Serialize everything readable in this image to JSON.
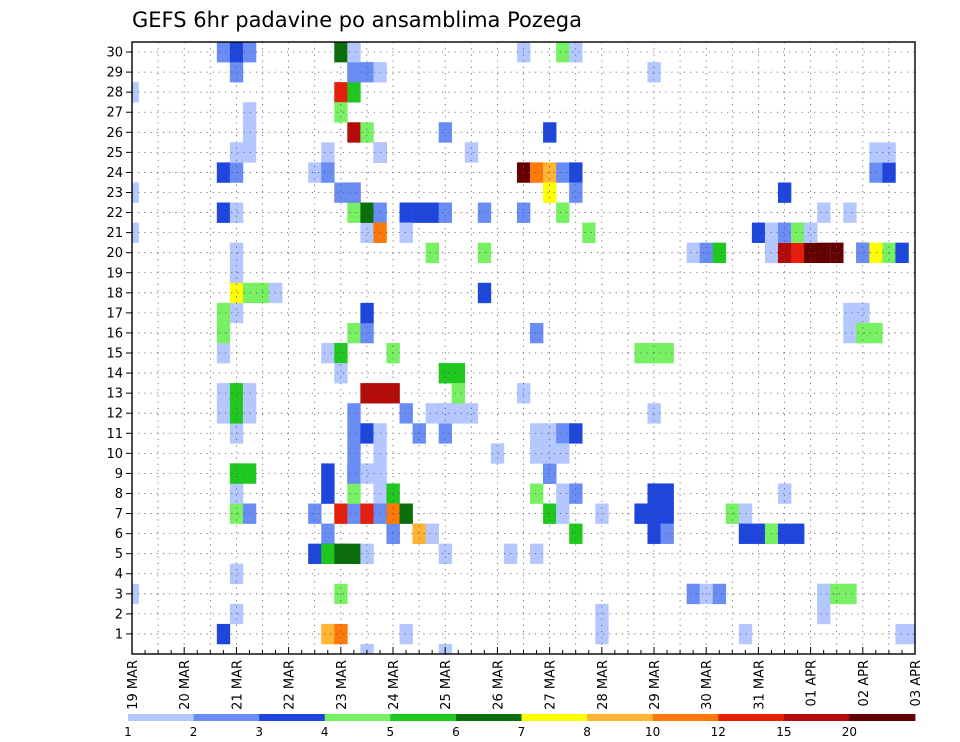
{
  "chart_data": {
    "type": "heatmap",
    "title": "GEFS 6hr padavine po ansamblima Pozega",
    "y_ticks": [
      "1",
      "2",
      "3",
      "4",
      "5",
      "6",
      "7",
      "8",
      "9",
      "10",
      "11",
      "12",
      "13",
      "14",
      "15",
      "16",
      "17",
      "18",
      "19",
      "20",
      "21",
      "22",
      "23",
      "24",
      "25",
      "26",
      "27",
      "28",
      "29",
      "30"
    ],
    "x_ticks": [
      "19 MAR",
      "20 MAR",
      "21 MAR",
      "22 MAR",
      "23 MAR",
      "24 MAR",
      "25 MAR",
      "26 MAR",
      "27 MAR",
      "28 MAR",
      "29 MAR",
      "30 MAR",
      "31 MAR",
      "01 APR",
      "02 APR",
      "03 APR"
    ],
    "x_start": "19 MAR 00Z",
    "x_step": "6 hr",
    "n_steps": 61,
    "colorbar": {
      "labels": [
        "1",
        "2",
        "3",
        "4",
        "5",
        "6",
        "7",
        "8",
        "10",
        "12",
        "15",
        "20"
      ],
      "colors": [
        "#b4c8ff",
        "#6a8cf5",
        "#1e46dc",
        "#78f064",
        "#1ec81e",
        "#0a6e0a",
        "#ffff00",
        "#ffb432",
        "#ff780a",
        "#e61e0a",
        "#b40a0a",
        "#640000"
      ]
    },
    "cells": [
      [
        0,
        1,
        3
      ],
      [
        0,
        1,
        21
      ],
      [
        0,
        1,
        23
      ],
      [
        0,
        1,
        28
      ],
      [
        7,
        3,
        1
      ],
      [
        7,
        1,
        12
      ],
      [
        7,
        1,
        13
      ],
      [
        7,
        1,
        15
      ],
      [
        7,
        4,
        16
      ],
      [
        7,
        4,
        17
      ],
      [
        7,
        3,
        22
      ],
      [
        7,
        3,
        24
      ],
      [
        7,
        2,
        30
      ],
      [
        8,
        2,
        29
      ],
      [
        8,
        1,
        2
      ],
      [
        8,
        1,
        4
      ],
      [
        8,
        4,
        7
      ],
      [
        8,
        1,
        8
      ],
      [
        8,
        4,
        9
      ],
      [
        8,
        5,
        9
      ],
      [
        8,
        1,
        11
      ],
      [
        8,
        5,
        12
      ],
      [
        8,
        5,
        13
      ],
      [
        8,
        1,
        17
      ],
      [
        8,
        7,
        18
      ],
      [
        8,
        1,
        19
      ],
      [
        8,
        1,
        20
      ],
      [
        8,
        1,
        22
      ],
      [
        8,
        2,
        24
      ],
      [
        8,
        1,
        25
      ],
      [
        8,
        3,
        30
      ],
      [
        9,
        2,
        7
      ],
      [
        9,
        5,
        9
      ],
      [
        9,
        1,
        12
      ],
      [
        9,
        1,
        13
      ],
      [
        9,
        4,
        18
      ],
      [
        9,
        1,
        25
      ],
      [
        9,
        1,
        26
      ],
      [
        9,
        1,
        27
      ],
      [
        9,
        2,
        30
      ],
      [
        10,
        4,
        18
      ],
      [
        11,
        1,
        18
      ],
      [
        14,
        3,
        5
      ],
      [
        14,
        2,
        7
      ],
      [
        14,
        1,
        24
      ],
      [
        15,
        2,
        6
      ],
      [
        15,
        3,
        5
      ],
      [
        15,
        8,
        1
      ],
      [
        15,
        5,
        5
      ],
      [
        15,
        3,
        8
      ],
      [
        15,
        3,
        9
      ],
      [
        15,
        1,
        15
      ],
      [
        15,
        1,
        25
      ],
      [
        15,
        2,
        24
      ],
      [
        16,
        9,
        1
      ],
      [
        16,
        4,
        3
      ],
      [
        16,
        5,
        5
      ],
      [
        16,
        6,
        5
      ],
      [
        16,
        10,
        7
      ],
      [
        16,
        5,
        15
      ],
      [
        16,
        1,
        14
      ],
      [
        16,
        2,
        23
      ],
      [
        16,
        6,
        30
      ],
      [
        16,
        10,
        28
      ],
      [
        16,
        4,
        27
      ],
      [
        17,
        6,
        5
      ],
      [
        17,
        2,
        7
      ],
      [
        17,
        3,
        9
      ],
      [
        17,
        4,
        8
      ],
      [
        17,
        2,
        9
      ],
      [
        17,
        2,
        10
      ],
      [
        17,
        2,
        11
      ],
      [
        17,
        2,
        12
      ],
      [
        17,
        4,
        16
      ],
      [
        17,
        4,
        22
      ],
      [
        17,
        10,
        23
      ],
      [
        17,
        11,
        26
      ],
      [
        17,
        5,
        28
      ],
      [
        17,
        5,
        29
      ],
      [
        17,
        4,
        23
      ],
      [
        17,
        2,
        23
      ],
      [
        17,
        2,
        29
      ],
      [
        17,
        1,
        30
      ],
      [
        18,
        2,
        7
      ],
      [
        18,
        10,
        7
      ],
      [
        18,
        1,
        9
      ],
      [
        18,
        1,
        5
      ],
      [
        18,
        3,
        11
      ],
      [
        18,
        2,
        16
      ],
      [
        18,
        1,
        21
      ],
      [
        18,
        6,
        22
      ],
      [
        18,
        11,
        13
      ],
      [
        18,
        3,
        17
      ],
      [
        18,
        4,
        26
      ],
      [
        18,
        2,
        29
      ],
      [
        18,
        1,
        0
      ],
      [
        19,
        1,
        8
      ],
      [
        19,
        11,
        13
      ],
      [
        19,
        1,
        9
      ],
      [
        19,
        2,
        7
      ],
      [
        19,
        1,
        11
      ],
      [
        19,
        1,
        10
      ],
      [
        19,
        10,
        25
      ],
      [
        19,
        1,
        25
      ],
      [
        19,
        2,
        22
      ],
      [
        19,
        9,
        21
      ],
      [
        19,
        1,
        29
      ],
      [
        20,
        12,
        7
      ],
      [
        20,
        11,
        13
      ],
      [
        20,
        9,
        6
      ],
      [
        20,
        5,
        8
      ],
      [
        20,
        2,
        6
      ],
      [
        20,
        9,
        7
      ],
      [
        20,
        4,
        15
      ],
      [
        21,
        6,
        7
      ],
      [
        21,
        1,
        1
      ],
      [
        21,
        3,
        22
      ],
      [
        21,
        2,
        12
      ],
      [
        21,
        1,
        21
      ],
      [
        22,
        2,
        6
      ],
      [
        22,
        8,
        6
      ],
      [
        22,
        3,
        22
      ],
      [
        22,
        2,
        11
      ],
      [
        23,
        1,
        6
      ],
      [
        23,
        1,
        12
      ],
      [
        23,
        4,
        20
      ],
      [
        23,
        3,
        22
      ],
      [
        24,
        1,
        5
      ],
      [
        24,
        2,
        11
      ],
      [
        24,
        2,
        12
      ],
      [
        24,
        5,
        14
      ],
      [
        24,
        1,
        12
      ],
      [
        24,
        1,
        0
      ],
      [
        24,
        2,
        26
      ],
      [
        24,
        2,
        22
      ],
      [
        25,
        1,
        12
      ],
      [
        25,
        5,
        14
      ],
      [
        25,
        4,
        13
      ],
      [
        26,
        1,
        12
      ],
      [
        26,
        1,
        25
      ],
      [
        27,
        2,
        22
      ],
      [
        27,
        4,
        20
      ],
      [
        27,
        3,
        18
      ],
      [
        28,
        1,
        10
      ],
      [
        29,
        1,
        5
      ],
      [
        30,
        1,
        30
      ],
      [
        30,
        1,
        13
      ],
      [
        30,
        2,
        22
      ],
      [
        30,
        12,
        24
      ],
      [
        31,
        2,
        16
      ],
      [
        31,
        1,
        5
      ],
      [
        31,
        1,
        10
      ],
      [
        31,
        1,
        11
      ],
      [
        31,
        4,
        8
      ],
      [
        31,
        9,
        24
      ],
      [
        32,
        3,
        9
      ],
      [
        32,
        2,
        9
      ],
      [
        32,
        5,
        7
      ],
      [
        32,
        4,
        23
      ],
      [
        32,
        1,
        23
      ],
      [
        32,
        8,
        24
      ],
      [
        32,
        7,
        23
      ],
      [
        32,
        1,
        11
      ],
      [
        32,
        1,
        10
      ],
      [
        32,
        3,
        26
      ],
      [
        33,
        1,
        7
      ],
      [
        33,
        1,
        8
      ],
      [
        33,
        2,
        11
      ],
      [
        33,
        2,
        24
      ],
      [
        33,
        4,
        22
      ],
      [
        33,
        1,
        10
      ],
      [
        33,
        4,
        30
      ],
      [
        34,
        3,
        11
      ],
      [
        34,
        5,
        6
      ],
      [
        34,
        2,
        8
      ],
      [
        34,
        1,
        30
      ],
      [
        34,
        3,
        24
      ],
      [
        34,
        2,
        23
      ],
      [
        35,
        4,
        21
      ],
      [
        36,
        1,
        7
      ],
      [
        36,
        1,
        1
      ],
      [
        36,
        1,
        2
      ],
      [
        39,
        1,
        15
      ],
      [
        39,
        1,
        7
      ],
      [
        39,
        4,
        15
      ],
      [
        39,
        3,
        7
      ],
      [
        40,
        2,
        7
      ],
      [
        40,
        3,
        7
      ],
      [
        40,
        3,
        8
      ],
      [
        40,
        4,
        15
      ],
      [
        40,
        3,
        6
      ],
      [
        40,
        1,
        29
      ],
      [
        40,
        1,
        12
      ],
      [
        41,
        4,
        15
      ],
      [
        41,
        3,
        7
      ],
      [
        41,
        3,
        8
      ],
      [
        41,
        2,
        6
      ],
      [
        43,
        2,
        3
      ],
      [
        43,
        1,
        20
      ],
      [
        44,
        1,
        3
      ],
      [
        44,
        2,
        20
      ],
      [
        45,
        5,
        20
      ],
      [
        45,
        2,
        3
      ],
      [
        46,
        1,
        7
      ],
      [
        46,
        4,
        7
      ],
      [
        47,
        1,
        7
      ],
      [
        47,
        1,
        1
      ],
      [
        47,
        1,
        6
      ],
      [
        47,
        3,
        6
      ],
      [
        48,
        3,
        6
      ],
      [
        48,
        3,
        21
      ],
      [
        49,
        1,
        20
      ],
      [
        49,
        3,
        6
      ],
      [
        49,
        1,
        21
      ],
      [
        49,
        4,
        6
      ],
      [
        50,
        3,
        21
      ],
      [
        50,
        2,
        20
      ],
      [
        50,
        11,
        20
      ],
      [
        50,
        4,
        21
      ],
      [
        50,
        3,
        6
      ],
      [
        50,
        2,
        21
      ],
      [
        50,
        1,
        8
      ],
      [
        50,
        3,
        23
      ],
      [
        51,
        3,
        6
      ],
      [
        51,
        10,
        20
      ],
      [
        51,
        1,
        21
      ],
      [
        51,
        4,
        21
      ],
      [
        52,
        12,
        20
      ],
      [
        52,
        1,
        21
      ],
      [
        53,
        12,
        20
      ],
      [
        53,
        1,
        22
      ],
      [
        53,
        4,
        3
      ],
      [
        53,
        1,
        3
      ],
      [
        53,
        1,
        2
      ],
      [
        54,
        1,
        20
      ],
      [
        54,
        12,
        20
      ],
      [
        54,
        4,
        3
      ],
      [
        55,
        1,
        3
      ],
      [
        55,
        1,
        22
      ],
      [
        55,
        1,
        17
      ],
      [
        55,
        1,
        16
      ],
      [
        55,
        4,
        3
      ],
      [
        56,
        1,
        16
      ],
      [
        56,
        1,
        17
      ],
      [
        56,
        4,
        16
      ],
      [
        56,
        12,
        20
      ],
      [
        56,
        2,
        20
      ],
      [
        57,
        4,
        16
      ],
      [
        57,
        7,
        20
      ],
      [
        57,
        2,
        24
      ],
      [
        57,
        1,
        25
      ],
      [
        58,
        4,
        20
      ],
      [
        58,
        3,
        24
      ],
      [
        58,
        1,
        25
      ],
      [
        59,
        1,
        1
      ],
      [
        59,
        3,
        20
      ],
      [
        60,
        1,
        1
      ]
    ]
  }
}
